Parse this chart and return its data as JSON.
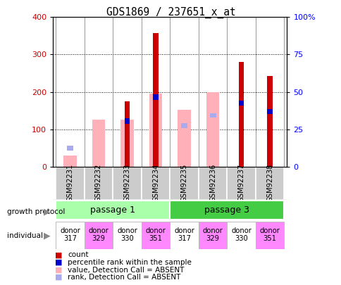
{
  "title": "GDS1869 / 237651_x_at",
  "samples": [
    "GSM92231",
    "GSM92232",
    "GSM92233",
    "GSM92234",
    "GSM92235",
    "GSM92236",
    "GSM92237",
    "GSM92238"
  ],
  "count_values": [
    0,
    0,
    175,
    358,
    0,
    0,
    280,
    243
  ],
  "pink_values": [
    30,
    125,
    125,
    195,
    152,
    200,
    0,
    0
  ],
  "blue_values": [
    0,
    0,
    122,
    186,
    0,
    0,
    170,
    148
  ],
  "light_blue_values": [
    50,
    0,
    0,
    0,
    110,
    137,
    0,
    0
  ],
  "count_color": "#cc0000",
  "pink_color": "#ffb0b8",
  "blue_color": "#0000cc",
  "light_blue_color": "#aaaaee",
  "ylim_left": [
    0,
    400
  ],
  "ylim_right": [
    0,
    100
  ],
  "yticks_left": [
    0,
    100,
    200,
    300,
    400
  ],
  "yticks_right": [
    0,
    25,
    50,
    75,
    100
  ],
  "yticklabels_right": [
    "0",
    "25",
    "50",
    "75",
    "100%"
  ],
  "groups": [
    {
      "label": "passage 1",
      "start": 0,
      "end": 4,
      "color": "#aaffaa"
    },
    {
      "label": "passage 3",
      "start": 4,
      "end": 8,
      "color": "#44cc44"
    }
  ],
  "individuals": [
    "donor\n317",
    "donor\n329",
    "donor\n330",
    "donor\n351",
    "donor\n317",
    "donor\n329",
    "donor\n330",
    "donor\n351"
  ],
  "ind_colors": [
    "#ffffff",
    "#ff88ff",
    "#ffffff",
    "#ff88ff",
    "#ffffff",
    "#ff88ff",
    "#ffffff",
    "#ff88ff"
  ],
  "legend_items": [
    {
      "label": "count",
      "color": "#cc0000"
    },
    {
      "label": "percentile rank within the sample",
      "color": "#0000cc"
    },
    {
      "label": "value, Detection Call = ABSENT",
      "color": "#ffb0b8"
    },
    {
      "label": "rank, Detection Call = ABSENT",
      "color": "#aaaaee"
    }
  ]
}
